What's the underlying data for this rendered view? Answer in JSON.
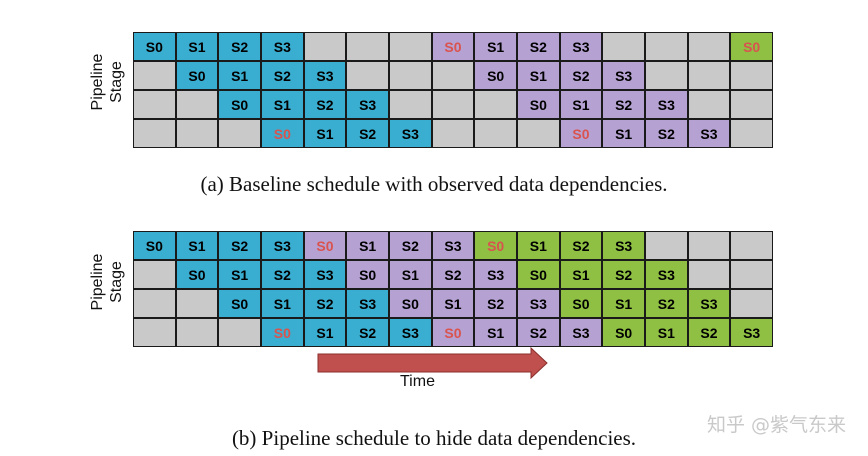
{
  "figure_a": {
    "ylabel": "Pipeline\nStage",
    "caption": "(a) Baseline schedule with observed data dependencies.",
    "rows": [
      [
        {
          "t": "S0",
          "c": "blue"
        },
        {
          "t": "S1",
          "c": "blue"
        },
        {
          "t": "S2",
          "c": "blue"
        },
        {
          "t": "S3",
          "c": "blue"
        },
        {
          "t": "",
          "c": "empty"
        },
        {
          "t": "",
          "c": "empty"
        },
        {
          "t": "",
          "c": "empty"
        },
        {
          "t": "S0",
          "c": "purple",
          "d": true
        },
        {
          "t": "S1",
          "c": "purple"
        },
        {
          "t": "S2",
          "c": "purple"
        },
        {
          "t": "S3",
          "c": "purple"
        },
        {
          "t": "",
          "c": "empty"
        },
        {
          "t": "",
          "c": "empty"
        },
        {
          "t": "",
          "c": "empty"
        },
        {
          "t": "S0",
          "c": "green",
          "d": true
        }
      ],
      [
        {
          "t": "",
          "c": "empty"
        },
        {
          "t": "S0",
          "c": "blue"
        },
        {
          "t": "S1",
          "c": "blue"
        },
        {
          "t": "S2",
          "c": "blue"
        },
        {
          "t": "S3",
          "c": "blue"
        },
        {
          "t": "",
          "c": "empty"
        },
        {
          "t": "",
          "c": "empty"
        },
        {
          "t": "",
          "c": "empty"
        },
        {
          "t": "S0",
          "c": "purple"
        },
        {
          "t": "S1",
          "c": "purple"
        },
        {
          "t": "S2",
          "c": "purple"
        },
        {
          "t": "S3",
          "c": "purple"
        },
        {
          "t": "",
          "c": "empty"
        },
        {
          "t": "",
          "c": "empty"
        },
        {
          "t": "",
          "c": "empty"
        }
      ],
      [
        {
          "t": "",
          "c": "empty"
        },
        {
          "t": "",
          "c": "empty"
        },
        {
          "t": "S0",
          "c": "blue"
        },
        {
          "t": "S1",
          "c": "blue"
        },
        {
          "t": "S2",
          "c": "blue"
        },
        {
          "t": "S3",
          "c": "blue"
        },
        {
          "t": "",
          "c": "empty"
        },
        {
          "t": "",
          "c": "empty"
        },
        {
          "t": "",
          "c": "empty"
        },
        {
          "t": "S0",
          "c": "purple"
        },
        {
          "t": "S1",
          "c": "purple"
        },
        {
          "t": "S2",
          "c": "purple"
        },
        {
          "t": "S3",
          "c": "purple"
        },
        {
          "t": "",
          "c": "empty"
        },
        {
          "t": "",
          "c": "empty"
        }
      ],
      [
        {
          "t": "",
          "c": "empty"
        },
        {
          "t": "",
          "c": "empty"
        },
        {
          "t": "",
          "c": "empty"
        },
        {
          "t": "S0",
          "c": "blue",
          "d": true
        },
        {
          "t": "S1",
          "c": "blue"
        },
        {
          "t": "S2",
          "c": "blue"
        },
        {
          "t": "S3",
          "c": "blue"
        },
        {
          "t": "",
          "c": "empty"
        },
        {
          "t": "",
          "c": "empty"
        },
        {
          "t": "",
          "c": "empty"
        },
        {
          "t": "S0",
          "c": "purple",
          "d": true
        },
        {
          "t": "S1",
          "c": "purple"
        },
        {
          "t": "S2",
          "c": "purple"
        },
        {
          "t": "S3",
          "c": "purple"
        },
        {
          "t": "",
          "c": "empty"
        }
      ]
    ]
  },
  "figure_b": {
    "ylabel": "Pipeline\nStage",
    "caption": "(b) Pipeline schedule to hide data dependencies.",
    "time_label": "Time",
    "rows": [
      [
        {
          "t": "S0",
          "c": "blue"
        },
        {
          "t": "S1",
          "c": "blue"
        },
        {
          "t": "S2",
          "c": "blue"
        },
        {
          "t": "S3",
          "c": "blue"
        },
        {
          "t": "S0",
          "c": "purple",
          "d": true
        },
        {
          "t": "S1",
          "c": "purple"
        },
        {
          "t": "S2",
          "c": "purple"
        },
        {
          "t": "S3",
          "c": "purple"
        },
        {
          "t": "S0",
          "c": "green",
          "d": true
        },
        {
          "t": "S1",
          "c": "green"
        },
        {
          "t": "S2",
          "c": "green"
        },
        {
          "t": "S3",
          "c": "green"
        },
        {
          "t": "",
          "c": "empty"
        },
        {
          "t": "",
          "c": "empty"
        },
        {
          "t": "",
          "c": "empty"
        }
      ],
      [
        {
          "t": "",
          "c": "empty"
        },
        {
          "t": "S0",
          "c": "blue"
        },
        {
          "t": "S1",
          "c": "blue"
        },
        {
          "t": "S2",
          "c": "blue"
        },
        {
          "t": "S3",
          "c": "blue"
        },
        {
          "t": "S0",
          "c": "purple"
        },
        {
          "t": "S1",
          "c": "purple"
        },
        {
          "t": "S2",
          "c": "purple"
        },
        {
          "t": "S3",
          "c": "purple"
        },
        {
          "t": "S0",
          "c": "green"
        },
        {
          "t": "S1",
          "c": "green"
        },
        {
          "t": "S2",
          "c": "green"
        },
        {
          "t": "S3",
          "c": "green"
        },
        {
          "t": "",
          "c": "empty"
        },
        {
          "t": "",
          "c": "empty"
        }
      ],
      [
        {
          "t": "",
          "c": "empty"
        },
        {
          "t": "",
          "c": "empty"
        },
        {
          "t": "S0",
          "c": "blue"
        },
        {
          "t": "S1",
          "c": "blue"
        },
        {
          "t": "S2",
          "c": "blue"
        },
        {
          "t": "S3",
          "c": "blue"
        },
        {
          "t": "S0",
          "c": "purple"
        },
        {
          "t": "S1",
          "c": "purple"
        },
        {
          "t": "S2",
          "c": "purple"
        },
        {
          "t": "S3",
          "c": "purple"
        },
        {
          "t": "S0",
          "c": "green"
        },
        {
          "t": "S1",
          "c": "green"
        },
        {
          "t": "S2",
          "c": "green"
        },
        {
          "t": "S3",
          "c": "green"
        },
        {
          "t": "",
          "c": "empty"
        }
      ],
      [
        {
          "t": "",
          "c": "empty"
        },
        {
          "t": "",
          "c": "empty"
        },
        {
          "t": "",
          "c": "empty"
        },
        {
          "t": "S0",
          "c": "blue",
          "d": true
        },
        {
          "t": "S1",
          "c": "blue"
        },
        {
          "t": "S2",
          "c": "blue"
        },
        {
          "t": "S3",
          "c": "blue"
        },
        {
          "t": "S0",
          "c": "purple",
          "d": true
        },
        {
          "t": "S1",
          "c": "purple"
        },
        {
          "t": "S2",
          "c": "purple"
        },
        {
          "t": "S3",
          "c": "purple"
        },
        {
          "t": "S0",
          "c": "green"
        },
        {
          "t": "S1",
          "c": "green"
        },
        {
          "t": "S2",
          "c": "green"
        },
        {
          "t": "S3",
          "c": "green"
        }
      ]
    ]
  },
  "watermark": "知乎 @紫气东来",
  "colors": {
    "blue": "#3aaed0",
    "purple": "#b6a2d2",
    "green": "#8fc044",
    "empty": "#c9c9c9",
    "dependency_text": "#d9534f",
    "arrow": "#c0504d"
  }
}
